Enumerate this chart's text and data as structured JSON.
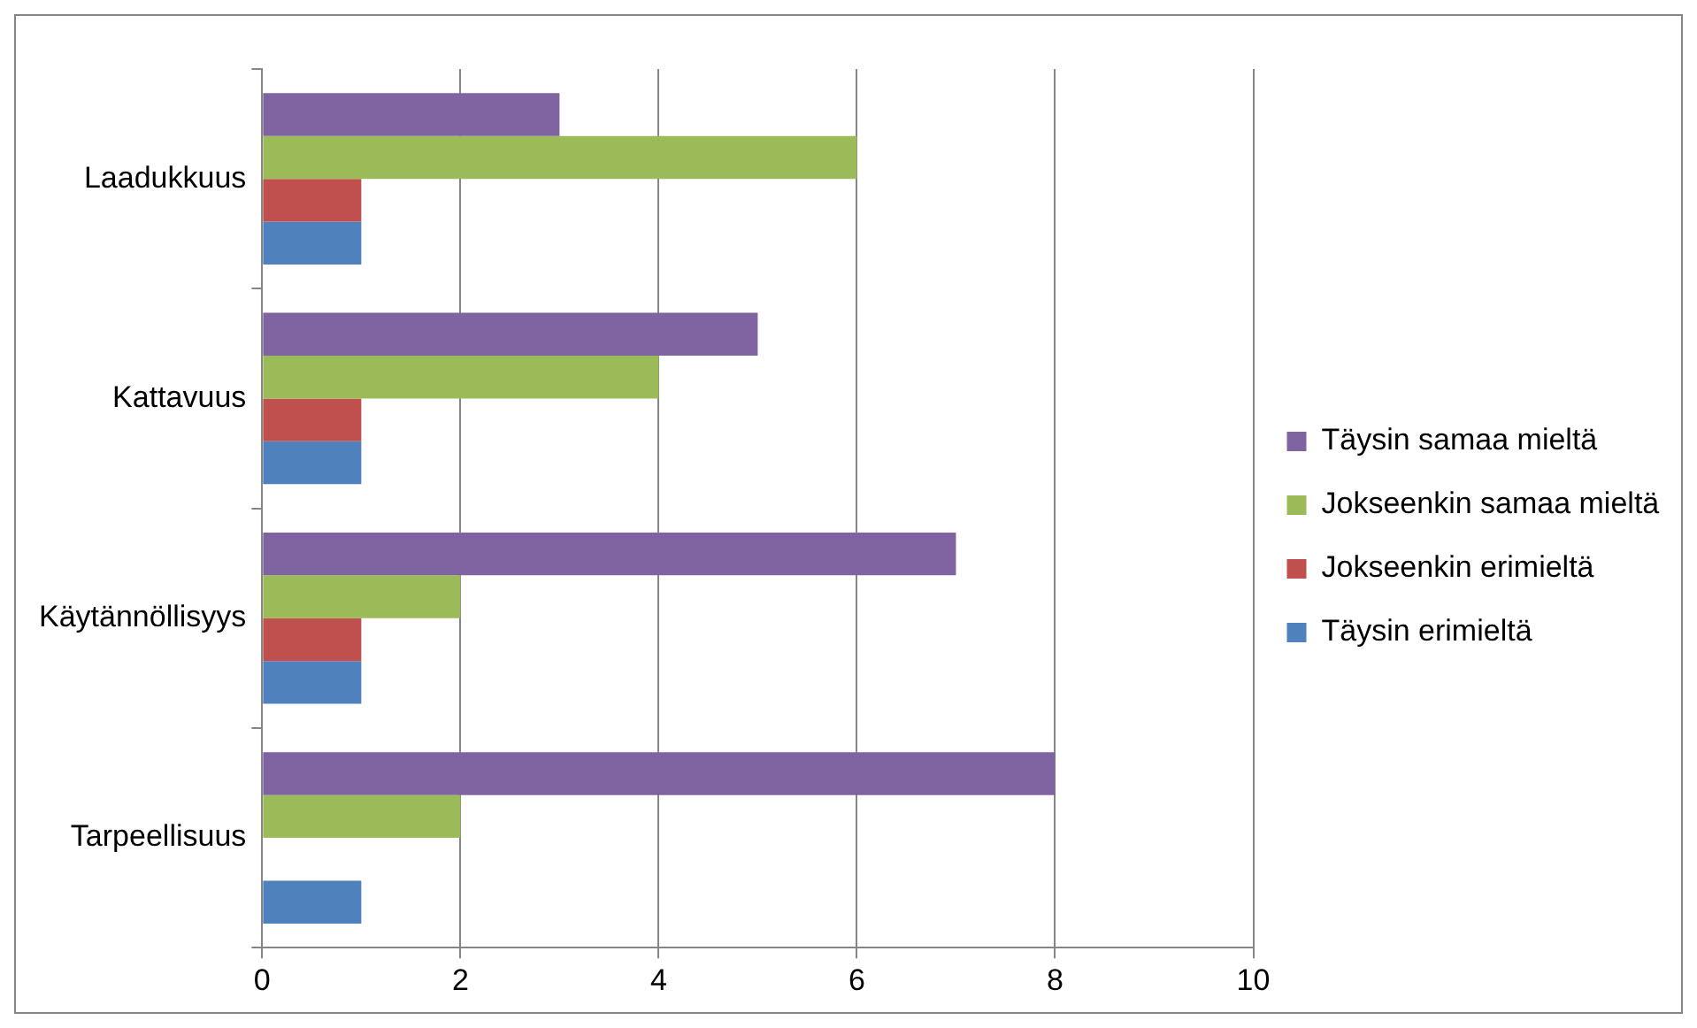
{
  "chart_data": {
    "type": "bar",
    "orientation": "horizontal",
    "categories": [
      "Laadukkuus",
      "Kattavuus",
      "Käytännöllisyys",
      "Tarpeellisuus"
    ],
    "series": [
      {
        "name": "Täysin samaa mieltä",
        "color": "#8064a2",
        "values": [
          3,
          5,
          7,
          8
        ]
      },
      {
        "name": "Jokseenkin samaa mieltä",
        "color": "#9bbb59",
        "values": [
          6,
          4,
          2,
          2
        ]
      },
      {
        "name": "Jokseenkin erimieltä",
        "color": "#c0504d",
        "values": [
          1,
          1,
          1,
          null
        ]
      },
      {
        "name": "Täysin erimieltä",
        "color": "#4f81bd",
        "values": [
          1,
          1,
          1,
          1
        ]
      }
    ],
    "xlim": [
      0,
      10
    ],
    "xticks": [
      0,
      2,
      4,
      6,
      8,
      10
    ],
    "grid": "x",
    "legend": "right"
  }
}
